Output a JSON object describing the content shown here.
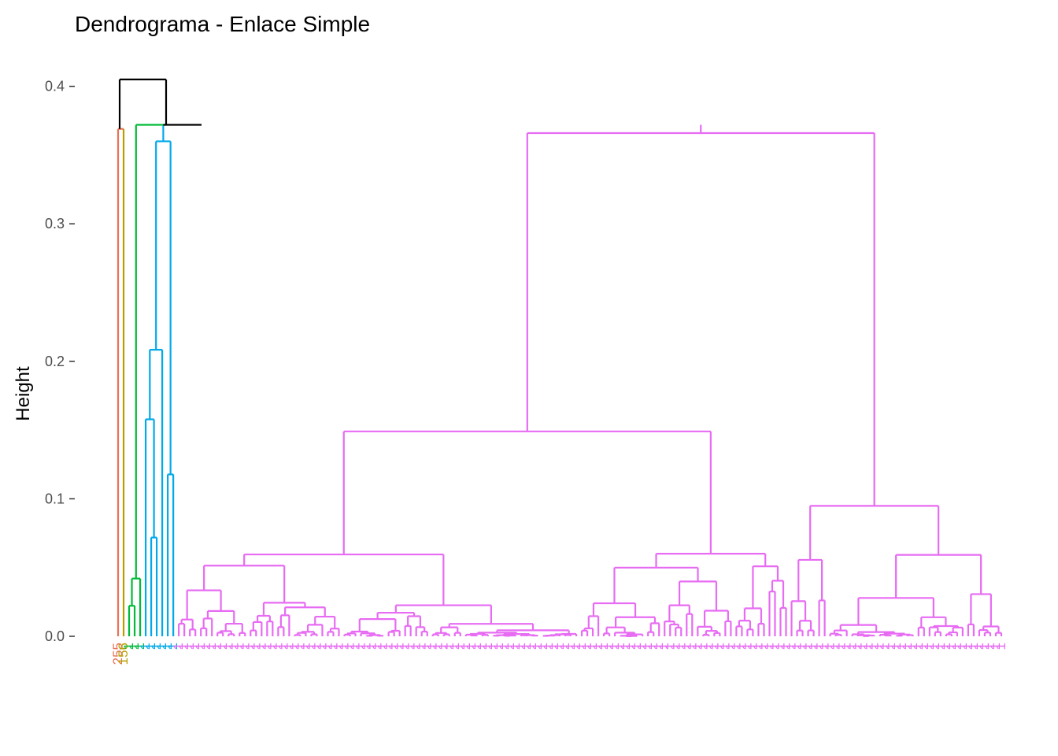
{
  "chart_data": {
    "type": "dendrogram",
    "title": "Dendrograma - Enlace Simple",
    "xlabel": "",
    "ylabel": "Height",
    "ylim": [
      0,
      0.4
    ],
    "yticks": [
      0.0,
      0.1,
      0.2,
      0.3,
      0.4
    ],
    "ytick_labels": [
      "0.0",
      "0.1",
      "0.2",
      "0.3",
      "0.4"
    ],
    "grid": false,
    "root_height": 0.405,
    "clusters": [
      {
        "color": "#E8735A",
        "size": 1,
        "merge_height": 0.369
      },
      {
        "color": "#B79F00",
        "size": 1,
        "merge_height": 0.369
      },
      {
        "color": "#00BA38",
        "size": 3,
        "merge_height": 0.372
      },
      {
        "color": "#00A9E8",
        "size": 6,
        "merge_height": 0.372
      },
      {
        "color": "#E76BF3",
        "size": 150,
        "merge_height": 0.372
      }
    ],
    "leaf_labels": [
      "255",
      "156",
      "",
      "",
      "",
      "",
      "",
      "",
      "",
      "",
      "",
      ""
    ]
  }
}
